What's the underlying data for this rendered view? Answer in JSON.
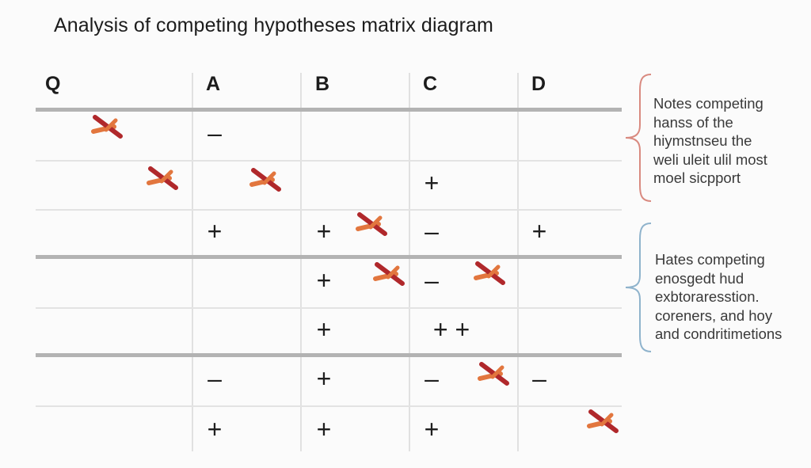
{
  "title": "Analysis of competing hypotheses matrix diagram",
  "columns": [
    "Q",
    "A",
    "B",
    "C",
    "D"
  ],
  "rows": [
    {
      "cells": [
        "x",
        "–",
        "",
        "",
        ""
      ]
    },
    {
      "cells": [
        "x",
        "x",
        "",
        "+",
        ""
      ]
    },
    {
      "cells": [
        "",
        "+",
        "+x",
        "–",
        "+"
      ]
    },
    {
      "cells": [
        "",
        "",
        "+x",
        "–x",
        ""
      ]
    },
    {
      "cells": [
        "",
        "",
        "+",
        "+ +",
        ""
      ]
    },
    {
      "cells": [
        "",
        "–",
        "+",
        "–x",
        "–"
      ]
    },
    {
      "cells": [
        "",
        "+",
        "+",
        "+",
        "x"
      ]
    }
  ],
  "symbols": {
    "plus": "+",
    "minus": "–",
    "plusplus": "+ +",
    "cross_icon": "crossed-out-mark-icon"
  },
  "notes": [
    {
      "lines": [
        "Notes competing",
        "hanss of the",
        "hiymstnseu the",
        "weli uleit ulil most",
        "moel sicpport"
      ],
      "brace_color": "#d98a80"
    },
    {
      "lines": [
        "Hates competing",
        "enosgedt hud",
        "exbtoraresstion.",
        "coreners, and hoy",
        "and condritimetions"
      ],
      "brace_color": "#8fb3cc"
    }
  ],
  "colors": {
    "thick_rule": "#b3b3b3",
    "thin_rule": "#e3e3e3",
    "cross_dark": "#b0282b",
    "cross_light": "#e2763e"
  }
}
